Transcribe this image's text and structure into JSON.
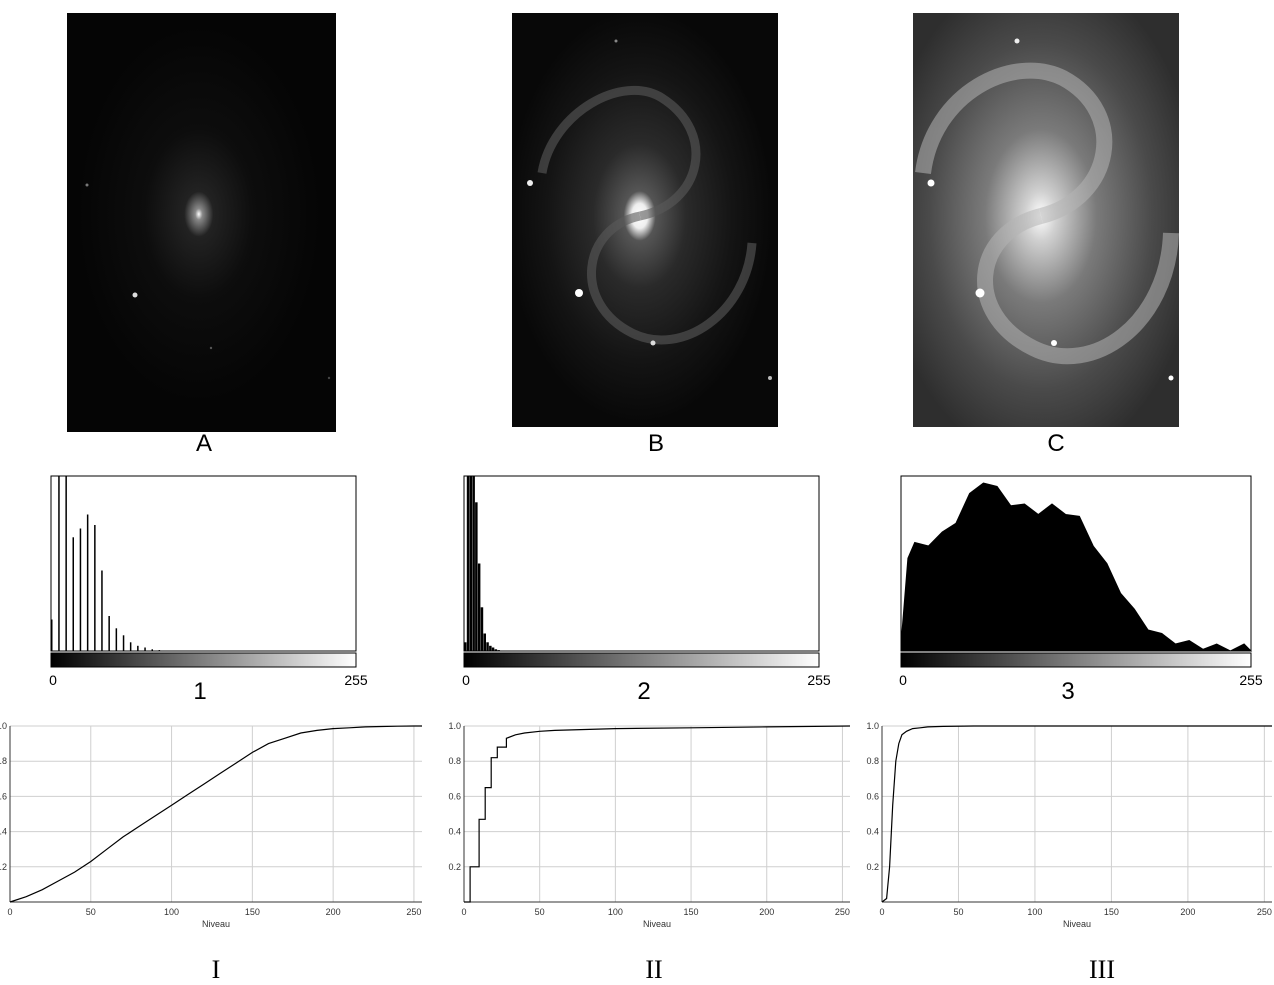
{
  "images": [
    {
      "label": "A",
      "description_level": "very dark, few stars"
    },
    {
      "label": "B",
      "description_level": "dark spiral galaxy"
    },
    {
      "label": "C",
      "description_level": "bright spiral galaxy"
    }
  ],
  "histogram_labels": [
    "1",
    "2",
    "3"
  ],
  "cdf_labels": [
    "I",
    "II",
    "III"
  ],
  "colors": {
    "background": "#ffffff",
    "ink": "#000000",
    "grid": "#cccccc"
  },
  "chart_data": [
    {
      "type": "bar",
      "title": "1",
      "xlim": [
        0,
        255
      ],
      "x_tick_labels": [
        "0",
        "255"
      ],
      "x": [
        0,
        6,
        12,
        18,
        24,
        30,
        36,
        42,
        48,
        54,
        60,
        66,
        72,
        78,
        84,
        90
      ],
      "values": [
        0.18,
        1.0,
        1.0,
        0.65,
        0.7,
        0.78,
        0.72,
        0.46,
        0.2,
        0.13,
        0.09,
        0.05,
        0.03,
        0.02,
        0.01,
        0.005
      ],
      "ylim": [
        0,
        1
      ]
    },
    {
      "type": "bar",
      "title": "2",
      "xlim": [
        0,
        255
      ],
      "x_tick_labels": [
        "0",
        "255"
      ],
      "x": [
        0,
        2,
        4,
        6,
        8,
        10,
        12,
        14,
        16,
        18,
        20,
        22,
        24,
        26,
        28,
        30
      ],
      "values": [
        0.05,
        1.0,
        1.0,
        1.0,
        0.85,
        0.5,
        0.25,
        0.1,
        0.05,
        0.03,
        0.02,
        0.01,
        0.005,
        0.003,
        0.002,
        0.001
      ],
      "ylim": [
        0,
        1
      ]
    },
    {
      "type": "area",
      "title": "3",
      "xlim": [
        0,
        255
      ],
      "x_tick_labels": [
        "0",
        "255"
      ],
      "x": [
        0,
        5,
        10,
        20,
        30,
        40,
        50,
        60,
        70,
        80,
        90,
        100,
        110,
        120,
        130,
        140,
        150,
        160,
        170,
        180,
        190,
        200,
        210,
        220,
        230,
        240,
        250,
        255
      ],
      "values": [
        0.02,
        0.55,
        0.6,
        0.62,
        0.66,
        0.75,
        0.88,
        0.98,
        0.92,
        0.85,
        0.82,
        0.8,
        0.82,
        0.8,
        0.75,
        0.62,
        0.48,
        0.35,
        0.22,
        0.14,
        0.08,
        0.06,
        0.04,
        0.03,
        0.02,
        0.02,
        0.02,
        0.02
      ],
      "ylim": [
        0,
        1
      ]
    },
    {
      "type": "line",
      "title": "I",
      "xlabel": "Niveau",
      "xlim": [
        0,
        255
      ],
      "ylim": [
        0,
        1
      ],
      "x_ticks": [
        0,
        50,
        100,
        150,
        200,
        250
      ],
      "y_ticks": [
        "1.0",
        "0.8",
        "0.6",
        "0.4",
        "0.2"
      ],
      "x": [
        0,
        10,
        20,
        30,
        40,
        50,
        60,
        70,
        80,
        90,
        100,
        110,
        120,
        130,
        140,
        150,
        160,
        170,
        180,
        190,
        200,
        210,
        220,
        230,
        240,
        250,
        255
      ],
      "y": [
        0,
        0.03,
        0.07,
        0.12,
        0.17,
        0.23,
        0.3,
        0.37,
        0.43,
        0.49,
        0.55,
        0.61,
        0.67,
        0.73,
        0.79,
        0.85,
        0.9,
        0.93,
        0.96,
        0.975,
        0.985,
        0.99,
        0.995,
        0.997,
        0.999,
        1.0,
        1.0
      ]
    },
    {
      "type": "line",
      "title": "II",
      "xlabel": "Niveau",
      "xlim": [
        0,
        255
      ],
      "ylim": [
        0,
        1
      ],
      "x_ticks": [
        0,
        50,
        100,
        150,
        200,
        250
      ],
      "y_ticks": [
        "1.0",
        "0.8",
        "0.6",
        "0.4",
        "0.2"
      ],
      "x": [
        0,
        2,
        4,
        4,
        6,
        10,
        10,
        14,
        14,
        18,
        18,
        22,
        22,
        28,
        28,
        34,
        40,
        50,
        60,
        80,
        100,
        150,
        200,
        255
      ],
      "y": [
        0,
        0,
        0,
        0.2,
        0.2,
        0.2,
        0.47,
        0.47,
        0.65,
        0.65,
        0.82,
        0.82,
        0.88,
        0.88,
        0.93,
        0.95,
        0.96,
        0.97,
        0.975,
        0.98,
        0.985,
        0.99,
        0.995,
        1.0
      ]
    },
    {
      "type": "line",
      "title": "III",
      "xlabel": "Niveau",
      "xlim": [
        0,
        255
      ],
      "ylim": [
        0,
        1
      ],
      "x_ticks": [
        0,
        50,
        100,
        150,
        200,
        250
      ],
      "y_ticks": [
        "1.0",
        "0.8",
        "0.6",
        "0.4",
        "0.2"
      ],
      "x": [
        0,
        3,
        5,
        7,
        9,
        11,
        13,
        16,
        20,
        25,
        30,
        40,
        60,
        100,
        150,
        200,
        255
      ],
      "y": [
        0,
        0.02,
        0.2,
        0.55,
        0.8,
        0.9,
        0.95,
        0.97,
        0.985,
        0.99,
        0.995,
        0.998,
        1.0,
        1.0,
        1.0,
        1.0,
        1.0
      ]
    }
  ]
}
